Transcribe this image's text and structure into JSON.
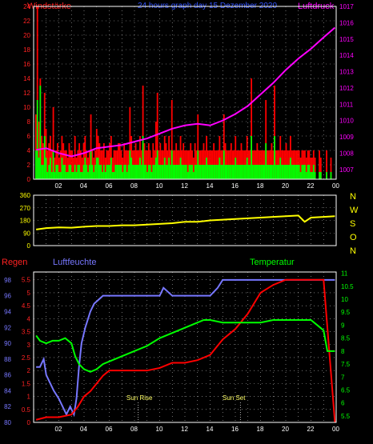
{
  "header": {
    "left_label": "Windstärke",
    "center_title": "24 hours graph day 15 Dezember 2020",
    "right_label": "Luftdruck"
  },
  "hour_ticks": [
    "02",
    "04",
    "06",
    "08",
    "10",
    "12",
    "14",
    "16",
    "18",
    "20",
    "22",
    "00"
  ],
  "colors": {
    "wind_avg": "#00ff00",
    "wind_gust": "#ff0000",
    "pressure": "#ff00ff",
    "direction": "#ffff00",
    "humidity": "#7777ff",
    "rain": "#ff0000",
    "temperature": "#00ff00",
    "grid": "#bbbbbb",
    "axis_text_top_left": "#ff2222",
    "axis_text_top_right": "#ff00ff",
    "axis_text_mid": "#ffff00",
    "axis_text_hum": "#7777ff",
    "axis_text_rain": "#ff2222",
    "axis_text_temp": "#00ff00"
  },
  "chart_data": [
    {
      "id": "wind_pressure",
      "type": "bar",
      "title": "24 hours graph day 15 Dezember 2020",
      "x_ticks": [
        "02",
        "04",
        "06",
        "08",
        "10",
        "12",
        "14",
        "16",
        "18",
        "20",
        "22",
        "00"
      ],
      "y_left": {
        "label": "Windstärke",
        "ticks": [
          "0",
          "2",
          "4",
          "6",
          "8",
          "10",
          "12",
          "14",
          "16",
          "18",
          "20",
          "22",
          "24"
        ],
        "range": [
          0,
          24
        ]
      },
      "y_right": {
        "label": "Luftdruck",
        "ticks": [
          "1007",
          "1008",
          "1009",
          "1010",
          "1011",
          "1012",
          "1013",
          "1014",
          "1015",
          "1016",
          "1017"
        ],
        "range": [
          1006.4,
          1017
        ]
      },
      "series": [
        {
          "name": "Windstärke",
          "values_gust": [
            9,
            24,
            8,
            14,
            6,
            5,
            12,
            7,
            4,
            5,
            6,
            4,
            10,
            3,
            4,
            5,
            3,
            4,
            6,
            5,
            4,
            4,
            3,
            5,
            4,
            4,
            3,
            6,
            3,
            4,
            5,
            4,
            3,
            5,
            6,
            4,
            3,
            4,
            9,
            4,
            3,
            4,
            7,
            6,
            5,
            4,
            4,
            5,
            3,
            4,
            4,
            5,
            6,
            3,
            4,
            4,
            4,
            5,
            5,
            4,
            3,
            5,
            4,
            4,
            4,
            10,
            6,
            4,
            4,
            5,
            4,
            4,
            6,
            4,
            13,
            5,
            4,
            4,
            5,
            4,
            3,
            5,
            4,
            8,
            12,
            4,
            5,
            4,
            4,
            6,
            5,
            4,
            6,
            4,
            11,
            4,
            4,
            5,
            4,
            4,
            6,
            4,
            5,
            4,
            4,
            4,
            4,
            5,
            4,
            3,
            5,
            4,
            9,
            4,
            4,
            4,
            5,
            4,
            6,
            4,
            4,
            4,
            4,
            5,
            4,
            4,
            4,
            6,
            4,
            4,
            9,
            5,
            4,
            4,
            4,
            5,
            4,
            4,
            6,
            4,
            4,
            4,
            5,
            4,
            4,
            4,
            6,
            4,
            4,
            14,
            4,
            4,
            4,
            5,
            4,
            4,
            4,
            4,
            4,
            11,
            4,
            4,
            4,
            5,
            4,
            13,
            4,
            4,
            4,
            6,
            4,
            4,
            4,
            5,
            4,
            4,
            6,
            4,
            4,
            4,
            4,
            4,
            4,
            3,
            4,
            4,
            4,
            3,
            4,
            4,
            3,
            3,
            4,
            3,
            0,
            0,
            4,
            3,
            0,
            0,
            0,
            4,
            0,
            0,
            3,
            0,
            0
          ],
          "values_avg": [
            4,
            11,
            3,
            13,
            2,
            2,
            6,
            3,
            1,
            2,
            3,
            1,
            4,
            1,
            2,
            2,
            1,
            1,
            3,
            2,
            2,
            1,
            1,
            2,
            2,
            1,
            1,
            2,
            1,
            2,
            2,
            1,
            1,
            2,
            3,
            2,
            1,
            2,
            4,
            2,
            1,
            2,
            3,
            3,
            2,
            2,
            1,
            2,
            1,
            2,
            2,
            2,
            3,
            1,
            1,
            2,
            2,
            2,
            2,
            2,
            1,
            2,
            2,
            1,
            2,
            4,
            3,
            2,
            2,
            2,
            2,
            2,
            3,
            2,
            6,
            2,
            2,
            1,
            2,
            2,
            1,
            2,
            2,
            3,
            4,
            2,
            2,
            2,
            2,
            3,
            2,
            2,
            3,
            2,
            4,
            2,
            2,
            2,
            2,
            2,
            3,
            2,
            2,
            2,
            2,
            1,
            2,
            2,
            2,
            1,
            2,
            2,
            4,
            2,
            2,
            2,
            2,
            2,
            3,
            2,
            2,
            2,
            2,
            2,
            2,
            2,
            2,
            3,
            2,
            2,
            4,
            2,
            2,
            2,
            2,
            2,
            2,
            2,
            3,
            2,
            2,
            2,
            2,
            2,
            2,
            2,
            3,
            2,
            2,
            6,
            2,
            2,
            2,
            2,
            2,
            2,
            2,
            2,
            2,
            5,
            2,
            2,
            2,
            2,
            2,
            6,
            2,
            2,
            2,
            3,
            2,
            2,
            2,
            2,
            2,
            2,
            3,
            2,
            2,
            2,
            2,
            2,
            2,
            1,
            2,
            2,
            2,
            1,
            2,
            2,
            1,
            1,
            2,
            1,
            0,
            0,
            1,
            1,
            0,
            0,
            0,
            1,
            0,
            0,
            1,
            0,
            0
          ]
        },
        {
          "name": "Luftdruck",
          "x": [
            0.2,
            1,
            2,
            3,
            4,
            5,
            6,
            7,
            8,
            9,
            10,
            11,
            12,
            13,
            14,
            15,
            16,
            17,
            18,
            19,
            20,
            21,
            22,
            23,
            23.9
          ],
          "y": [
            1008.2,
            1008.3,
            1008.0,
            1007.8,
            1008.0,
            1008.3,
            1008.4,
            1008.5,
            1008.7,
            1008.9,
            1009.2,
            1009.5,
            1009.7,
            1009.8,
            1009.7,
            1010.0,
            1010.4,
            1010.9,
            1011.6,
            1012.3,
            1013.1,
            1013.8,
            1014.4,
            1015.1,
            1015.7
          ]
        }
      ]
    },
    {
      "id": "wind_direction",
      "type": "line",
      "x_ticks": [
        "02",
        "04",
        "06",
        "08",
        "10",
        "12",
        "14",
        "16",
        "18",
        "20",
        "22",
        "00"
      ],
      "y_left": {
        "ticks": [
          "0",
          "90",
          "180",
          "270",
          "360"
        ],
        "range": [
          0,
          360
        ]
      },
      "y_right": {
        "labels": [
          "N",
          "W",
          "S",
          "O",
          "N"
        ]
      },
      "series": [
        {
          "name": "Windrichtung",
          "x": [
            0.2,
            1,
            2,
            3,
            4,
            5,
            6,
            7,
            8,
            9,
            10,
            11,
            12,
            13,
            14,
            15,
            16,
            17,
            18,
            19,
            20,
            21,
            21.5,
            22,
            23,
            23.9
          ],
          "y": [
            115,
            125,
            130,
            128,
            135,
            140,
            140,
            145,
            145,
            150,
            155,
            160,
            170,
            170,
            180,
            185,
            190,
            195,
            200,
            205,
            210,
            215,
            170,
            200,
            205,
            210
          ]
        }
      ]
    },
    {
      "id": "hum_rain_temp",
      "type": "line",
      "x_ticks": [
        "02",
        "04",
        "06",
        "08",
        "10",
        "12",
        "14",
        "16",
        "18",
        "20",
        "22",
        "00"
      ],
      "annotations": [
        {
          "text": "Sun Rise",
          "x": 8.3
        },
        {
          "text": "Sun Set",
          "x": 16.4
        }
      ],
      "axes": {
        "humidity": {
          "label": "Luftfeuchte",
          "ticks": [
            "80",
            "82",
            "84",
            "86",
            "88",
            "90",
            "92",
            "94",
            "96",
            "98"
          ],
          "range": [
            80,
            99
          ]
        },
        "rain": {
          "label": "Regen",
          "ticks": [
            "0",
            "0.5",
            "1",
            "1.5",
            "2",
            "2.5",
            "3",
            "3.5",
            "4",
            "4.5",
            "5",
            "5.5"
          ],
          "range": [
            0,
            5.8
          ]
        },
        "temperature": {
          "label": "Temperatur",
          "ticks": [
            "5.5",
            "6",
            "6.5",
            "7",
            "7.5",
            "8",
            "8.5",
            "9",
            "9.5",
            "10",
            "10.5",
            "11"
          ],
          "range": [
            5.25,
            11.05
          ]
        }
      },
      "series": [
        {
          "name": "Luftfeuchte",
          "x": [
            0.2,
            0.5,
            0.8,
            1.0,
            1.3,
            1.6,
            2.0,
            2.3,
            2.6,
            2.9,
            3.2,
            3.4,
            3.6,
            3.8,
            4.1,
            4.5,
            4.8,
            5.5,
            6,
            7,
            8,
            9,
            10,
            10.3,
            11,
            12,
            13,
            14,
            14.6,
            15,
            16,
            18,
            20,
            22,
            23.9
          ],
          "y": [
            87,
            87,
            88,
            86,
            85,
            84,
            83,
            82,
            81,
            82,
            81,
            83,
            87,
            90,
            92,
            94,
            95,
            96,
            96,
            96,
            96,
            96,
            96,
            97,
            96,
            96,
            96,
            96,
            97,
            98,
            98,
            98,
            98,
            98,
            98
          ]
        },
        {
          "name": "Regen",
          "x": [
            0.2,
            1,
            2,
            3,
            3.5,
            4,
            4.5,
            5,
            5.5,
            6,
            7,
            8,
            9,
            10,
            11,
            12,
            13,
            14,
            14.5,
            15,
            15.5,
            16,
            16.5,
            17,
            17.5,
            18,
            19,
            20,
            21,
            22,
            23,
            23.9
          ],
          "y": [
            0.1,
            0.2,
            0.2,
            0.3,
            0.6,
            1.0,
            1.2,
            1.5,
            1.8,
            2.0,
            2.0,
            2.0,
            2.0,
            2.1,
            2.3,
            2.3,
            2.4,
            2.6,
            2.9,
            3.2,
            3.4,
            3.6,
            3.9,
            4.2,
            4.6,
            5.0,
            5.3,
            5.5,
            5.5,
            5.5,
            5.5,
            0
          ]
        },
        {
          "name": "Temperatur",
          "x": [
            0.2,
            0.5,
            1,
            1.5,
            2,
            2.5,
            3,
            3.3,
            3.6,
            4,
            4.5,
            5,
            5.5,
            6,
            7,
            8,
            9,
            10,
            11,
            12,
            13,
            13.5,
            14,
            15,
            16,
            17,
            18,
            19,
            20,
            21,
            22,
            22.5,
            23,
            23.3,
            23.9
          ],
          "y": [
            8.6,
            8.4,
            8.3,
            8.4,
            8.4,
            8.5,
            8.3,
            7.8,
            7.5,
            7.3,
            7.2,
            7.3,
            7.5,
            7.6,
            7.8,
            8.0,
            8.2,
            8.5,
            8.7,
            8.9,
            9.1,
            9.2,
            9.2,
            9.1,
            9.1,
            9.1,
            9.1,
            9.2,
            9.2,
            9.2,
            9.2,
            9.0,
            8.8,
            8.0,
            8.0
          ]
        }
      ]
    }
  ]
}
